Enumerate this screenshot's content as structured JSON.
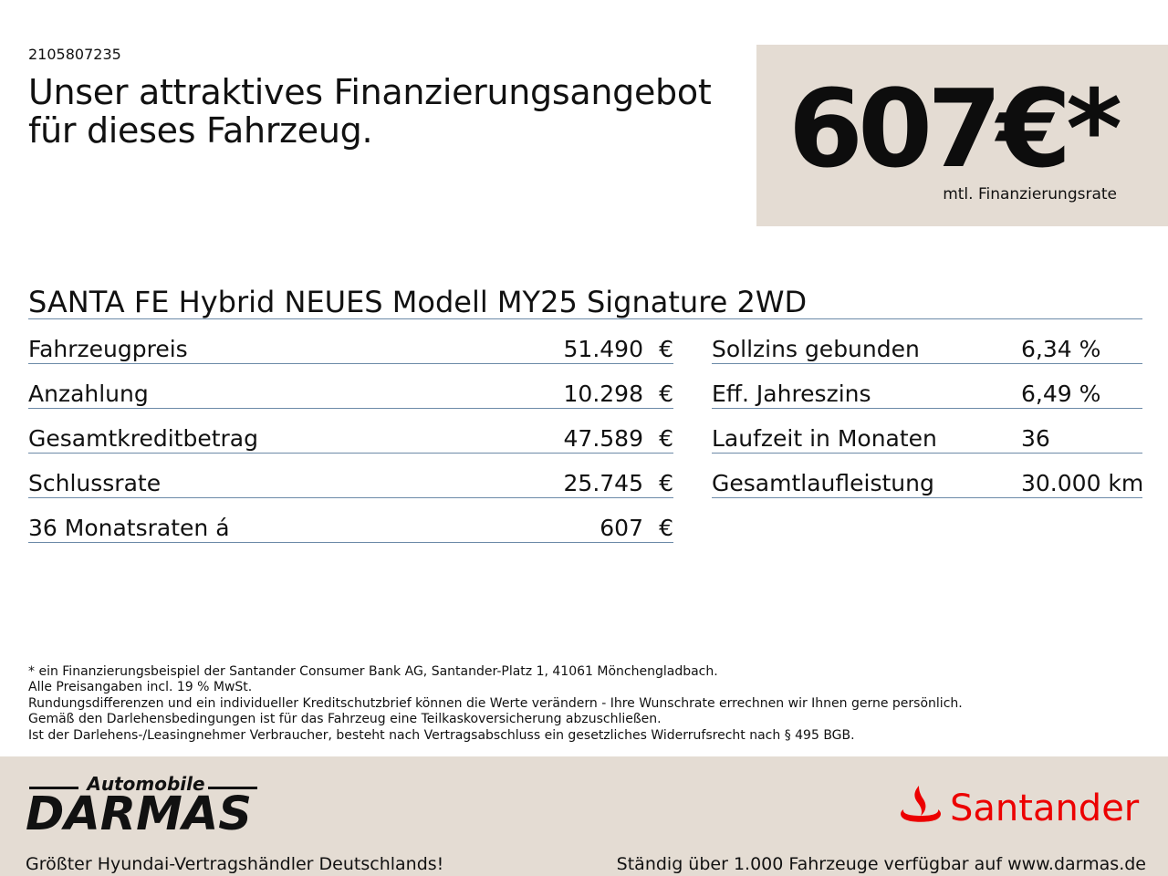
{
  "ref_id": "2105807235",
  "headline": {
    "line1": "Unser attraktives Finanzierungsangebot",
    "line2": "für dieses Fahrzeug."
  },
  "price_box": {
    "amount": "607€*",
    "caption": "mtl. Finanzierungsrate",
    "background": "#e4dcd3"
  },
  "model": "SANTA FE Hybrid NEUES Modell MY25 Signature 2WD",
  "left_table": [
    {
      "label": "Fahrzeugpreis",
      "value": "51.490",
      "currency": "€"
    },
    {
      "label": "Anzahlung",
      "value": "10.298",
      "currency": "€"
    },
    {
      "label": "Gesamtkreditbetrag",
      "value": "47.589",
      "currency": "€"
    },
    {
      "label": "Schlussrate",
      "value": "25.745",
      "currency": "€"
    },
    {
      "label": "36 Monatsraten á",
      "value": "607",
      "currency": "€"
    }
  ],
  "right_table": [
    {
      "label": "Sollzins gebunden",
      "value": "6,34 %"
    },
    {
      "label": "Eff. Jahreszins",
      "value": "6,49 %"
    },
    {
      "label": "Laufzeit in Monaten",
      "value": "36"
    },
    {
      "label": "Gesamtlaufleistung",
      "value": "30.000 km"
    }
  ],
  "footnotes": [
    "* ein Finanzierungsbeispiel der Santander Consumer Bank AG, Santander-Platz 1, 41061 Mönchengladbach.",
    "Alle Preisangaben incl. 19 % MwSt.",
    "Rundungsdifferenzen und ein individueller Kreditschutzbrief können die Werte verändern - Ihre Wunschrate errechnen wir Ihnen gerne persönlich.",
    "Gemäß den Darlehensbedingungen ist für das Fahrzeug eine Teilkaskoversicherung abzuschließen.",
    "Ist der Darlehens-/Leasingnehmer Verbraucher, besteht nach Vertragsabschluss ein gesetzliches Widerrufsrecht nach § 495 BGB."
  ],
  "footer": {
    "dealer_logo_small": "Automobile",
    "dealer_logo_big": "DARMAS",
    "bank_logo_text": "Santander",
    "tagline_left": "Größter Hyundai-Vertragshändler Deutschlands!",
    "tagline_right": "Ständig über 1.000 Fahrzeuge verfügbar auf www.darmas.de",
    "icons": [
      "santander-flame-icon"
    ],
    "colors": {
      "accent_red": "#ec0000",
      "rule_blue": "#6c8aa8",
      "panel_beige": "#e4dcd3"
    }
  }
}
